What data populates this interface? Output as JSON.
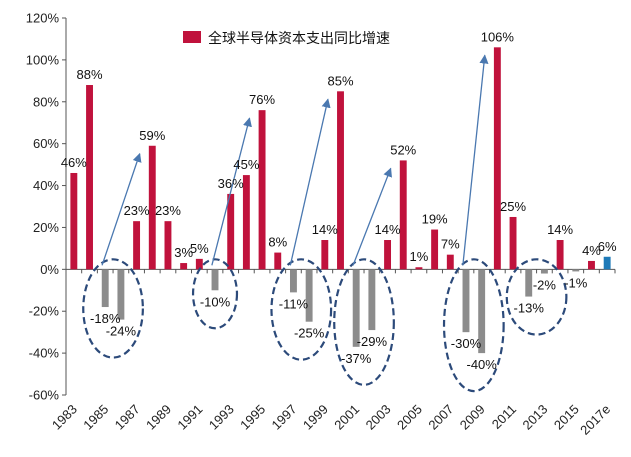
{
  "chart_data": {
    "type": "bar",
    "title": "",
    "xlabel": "",
    "ylabel": "",
    "ylim": [
      -60,
      120
    ],
    "yticks": [
      "-60%",
      "-40%",
      "-20%",
      "0%",
      "20%",
      "40%",
      "60%",
      "80%",
      "100%",
      "120%"
    ],
    "ytick_values": [
      -60,
      -40,
      -20,
      0,
      20,
      40,
      60,
      80,
      100,
      120
    ],
    "categories": [
      "1983",
      "1984",
      "1985",
      "1986",
      "1987",
      "1988",
      "1989",
      "1990",
      "1991",
      "1992",
      "1993",
      "1994",
      "1995",
      "1996",
      "1997",
      "1998",
      "1999",
      "2000",
      "2001",
      "2002",
      "2003",
      "2004",
      "2005",
      "2006",
      "2007",
      "2008",
      "2009",
      "2010",
      "2011",
      "2012",
      "2013",
      "2014",
      "2015",
      "2016",
      "2017e"
    ],
    "xtick_labels": [
      "1983",
      "1985",
      "1987",
      "1989",
      "1991",
      "1993",
      "1995",
      "1997",
      "1999",
      "2001",
      "2003",
      "2005",
      "2007",
      "2009",
      "2011",
      "2013",
      "2015",
      "2017e"
    ],
    "values": [
      46,
      88,
      -18,
      -24,
      23,
      59,
      23,
      3,
      5,
      -10,
      36,
      45,
      76,
      8,
      -11,
      -25,
      14,
      85,
      -37,
      -29,
      14,
      52,
      1,
      19,
      7,
      -30,
      -40,
      106,
      25,
      -13,
      -2,
      14,
      -1,
      4,
      6
    ],
    "value_labels": [
      "46%",
      "88%",
      "-18%",
      "-24%",
      "23%",
      "59%",
      "23%",
      "3%",
      "5%",
      "-10%",
      "36%",
      "45%",
      "76%",
      "8%",
      "-11%",
      "-25%",
      "14%",
      "85%",
      "-37%",
      "-29%",
      "14%",
      "52%",
      "1%",
      "19%",
      "7%",
      "-30%",
      "-40%",
      "106%",
      "25%",
      "-13%",
      "-2%",
      "14%",
      "-1%",
      "4%",
      "6%"
    ],
    "legend": [
      {
        "name": "全球半导体资本支出同比增速",
        "color": "#c0123c"
      }
    ],
    "colors": {
      "positive": "#c0123c",
      "negative": "#8c8c8c",
      "forecast": "#1e7ab8",
      "arrow": "#4a78b0",
      "ellipse": "#2c4a7a",
      "axis": "#555555"
    },
    "annotations": {
      "trough_ellipses": [
        "1985-1986",
        "1992",
        "1997-1998",
        "2001-2002",
        "2008-2009",
        "2012-2013"
      ],
      "recovery_arrows": [
        "1985-1988",
        "1992-1995",
        "1997-2000",
        "2001-2004",
        "2008-2010"
      ]
    }
  }
}
